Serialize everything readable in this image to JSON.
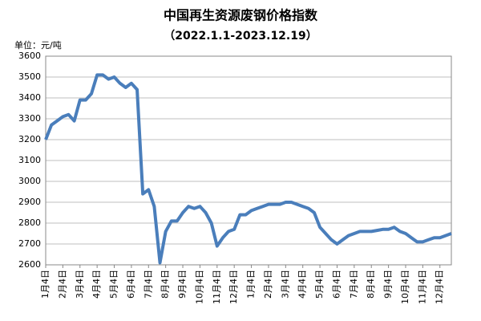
{
  "chart_data": {
    "type": "line",
    "title": "中国再生资源废钢价格指数",
    "subtitle": "（2022.1.1-2023.12.19）",
    "unit_label": "单位：元/吨",
    "categories": [
      "1月4日",
      null,
      null,
      "2月4日",
      null,
      null,
      "3月4日",
      null,
      null,
      "4月4日",
      null,
      null,
      "5月4日",
      null,
      null,
      "6月4日",
      null,
      null,
      "7月4日",
      null,
      null,
      "8月4日",
      null,
      null,
      "9月4日",
      null,
      null,
      "10月4日",
      null,
      null,
      "11月4日",
      null,
      null,
      "12月4日",
      null,
      null,
      "1月4日",
      null,
      null,
      "2月4日",
      null,
      null,
      "3月4日",
      null,
      null,
      "4月4日",
      null,
      null,
      "5月4日",
      null,
      null,
      "6月4日",
      null,
      null,
      "7月4日",
      null,
      null,
      "8月4日",
      null,
      null,
      "9月4日",
      null,
      null,
      "10月4日",
      null,
      null,
      "11月4日",
      null,
      null,
      "12月4日",
      null,
      null
    ],
    "series": [
      {
        "color": "#4a7ebb",
        "values": [
          3200,
          3270,
          3290,
          3310,
          3320,
          3290,
          3390,
          3390,
          3420,
          3510,
          3510,
          3490,
          3500,
          3470,
          3450,
          3470,
          3440,
          2940,
          2960,
          2880,
          2610,
          2760,
          2810,
          2810,
          2850,
          2880,
          2870,
          2880,
          2850,
          2800,
          2690,
          2730,
          2760,
          2770,
          2840,
          2840,
          2860,
          2870,
          2880,
          2890,
          2890,
          2890,
          2900,
          2900,
          2890,
          2880,
          2870,
          2850,
          2780,
          2750,
          2720,
          2700,
          2720,
          2740,
          2750,
          2760,
          2760,
          2760,
          2765,
          2770,
          2770,
          2780,
          2760,
          2750,
          2730,
          2710,
          2710,
          2720,
          2730,
          2730,
          2740,
          2750
        ]
      }
    ],
    "ylim": [
      2600,
      3600
    ],
    "yticks": [
      2600,
      2700,
      2800,
      2900,
      3000,
      3100,
      3200,
      3300,
      3400,
      3500,
      3600
    ],
    "grid": true
  }
}
